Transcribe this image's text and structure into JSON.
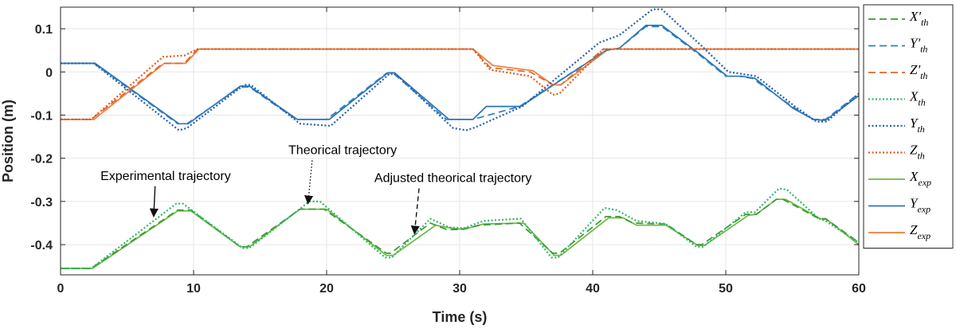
{
  "chart_data": {
    "type": "line",
    "xlabel": "Time (s)",
    "ylabel": "Position (m)",
    "xlim": [
      0,
      60
    ],
    "ylim": [
      -0.47,
      0.15
    ],
    "xticks": [
      0,
      10,
      20,
      30,
      40,
      50,
      60
    ],
    "yticks": [
      0.1,
      0,
      -0.1,
      -0.2,
      -0.3,
      -0.4
    ],
    "xtick_labels": [
      "0",
      "10",
      "20",
      "30",
      "40",
      "50",
      "60"
    ],
    "ytick_labels": [
      "0.1",
      "0",
      "-0.1",
      "-0.2",
      "-0.3",
      "-0.4"
    ],
    "grid": true,
    "legend_position": "right-outside",
    "colors": {
      "X": "#4fb043",
      "Y": "#2f7ec0",
      "Z": "#e8793a"
    },
    "series": [
      {
        "name": "X'th",
        "base": "X",
        "prime": true,
        "sub": "th",
        "style": "dashed",
        "color": "#3a9a30",
        "points": [
          [
            0,
            -0.455
          ],
          [
            2.3,
            -0.455
          ],
          [
            8.8,
            -0.32
          ],
          [
            9.8,
            -0.32
          ],
          [
            13.5,
            -0.405
          ],
          [
            14,
            -0.405
          ],
          [
            18,
            -0.318
          ],
          [
            19.8,
            -0.318
          ],
          [
            24.5,
            -0.42
          ],
          [
            24.8,
            -0.42
          ],
          [
            27.8,
            -0.35
          ],
          [
            29,
            -0.365
          ],
          [
            30,
            -0.365
          ],
          [
            31.5,
            -0.355
          ],
          [
            34.5,
            -0.35
          ],
          [
            37,
            -0.42
          ],
          [
            37.5,
            -0.42
          ],
          [
            41,
            -0.335
          ],
          [
            42,
            -0.335
          ],
          [
            43,
            -0.35
          ],
          [
            45.5,
            -0.352
          ],
          [
            47.8,
            -0.4
          ],
          [
            48.2,
            -0.4
          ],
          [
            51.5,
            -0.33
          ],
          [
            52.3,
            -0.33
          ],
          [
            53.8,
            -0.295
          ],
          [
            54.3,
            -0.295
          ],
          [
            57,
            -0.34
          ],
          [
            57.5,
            -0.34
          ],
          [
            60,
            -0.395
          ]
        ]
      },
      {
        "name": "Y'th",
        "base": "Y",
        "prime": true,
        "sub": "th",
        "style": "dashed",
        "color": "#2f7ec0",
        "points": [
          [
            0,
            0.02
          ],
          [
            2.5,
            0.02
          ],
          [
            8.8,
            -0.12
          ],
          [
            9.5,
            -0.12
          ],
          [
            13.5,
            -0.035
          ],
          [
            14.2,
            -0.035
          ],
          [
            17.7,
            -0.11
          ],
          [
            20,
            -0.11
          ],
          [
            24.5,
            -0.003
          ],
          [
            25,
            -0.003
          ],
          [
            29,
            -0.11
          ],
          [
            31,
            -0.11
          ],
          [
            34.5,
            -0.08
          ],
          [
            41,
            0.05
          ],
          [
            42,
            0.055
          ],
          [
            44,
            0.105
          ],
          [
            45.2,
            0.105
          ],
          [
            48,
            0.04
          ],
          [
            50,
            -0.01
          ],
          [
            51,
            -0.01
          ],
          [
            52,
            -0.015
          ],
          [
            55,
            -0.08
          ],
          [
            56.5,
            -0.11
          ],
          [
            57.5,
            -0.11
          ],
          [
            60,
            -0.05
          ]
        ]
      },
      {
        "name": "Z'th",
        "base": "Z",
        "prime": true,
        "sub": "th",
        "style": "dashed",
        "color": "#d96a2c",
        "points": [
          [
            0,
            -0.11
          ],
          [
            2.3,
            -0.11
          ],
          [
            7.7,
            0.02
          ],
          [
            9.3,
            0.02
          ],
          [
            10.3,
            0.053
          ],
          [
            31,
            0.053
          ],
          [
            32.3,
            0.01
          ],
          [
            35.3,
            0.0
          ],
          [
            37,
            -0.03
          ],
          [
            37.6,
            -0.03
          ],
          [
            40.8,
            0.053
          ],
          [
            60,
            0.053
          ]
        ]
      },
      {
        "name": "Xth",
        "base": "X",
        "prime": false,
        "sub": "th",
        "style": "dotted",
        "color": "#2fb86a",
        "points": [
          [
            0,
            -0.455
          ],
          [
            2.3,
            -0.455
          ],
          [
            8.7,
            -0.305
          ],
          [
            9.2,
            -0.305
          ],
          [
            13.7,
            -0.408
          ],
          [
            14.2,
            -0.408
          ],
          [
            18.7,
            -0.3
          ],
          [
            19.5,
            -0.3
          ],
          [
            24.4,
            -0.43
          ],
          [
            24.9,
            -0.43
          ],
          [
            27.8,
            -0.34
          ],
          [
            29.2,
            -0.36
          ],
          [
            30.3,
            -0.362
          ],
          [
            31.8,
            -0.345
          ],
          [
            34.6,
            -0.34
          ],
          [
            36.9,
            -0.43
          ],
          [
            37.4,
            -0.43
          ],
          [
            40.9,
            -0.315
          ],
          [
            41.8,
            -0.32
          ],
          [
            43.3,
            -0.345
          ],
          [
            45.5,
            -0.352
          ],
          [
            47.8,
            -0.405
          ],
          [
            48.3,
            -0.405
          ],
          [
            51.5,
            -0.325
          ],
          [
            52.2,
            -0.325
          ],
          [
            54,
            -0.27
          ],
          [
            54.6,
            -0.273
          ],
          [
            57,
            -0.34
          ],
          [
            57.5,
            -0.345
          ],
          [
            60,
            -0.395
          ]
        ]
      },
      {
        "name": "Yth",
        "base": "Y",
        "prime": false,
        "sub": "th",
        "style": "dotted",
        "color": "#2560b0",
        "points": [
          [
            0,
            0.02
          ],
          [
            2.5,
            0.02
          ],
          [
            8.9,
            -0.135
          ],
          [
            9.5,
            -0.13
          ],
          [
            13.8,
            -0.03
          ],
          [
            14.3,
            -0.03
          ],
          [
            18,
            -0.12
          ],
          [
            20.3,
            -0.125
          ],
          [
            24.7,
            -0.005
          ],
          [
            25.2,
            -0.005
          ],
          [
            29.5,
            -0.13
          ],
          [
            30.5,
            -0.135
          ],
          [
            31.2,
            -0.128
          ],
          [
            34.7,
            -0.08
          ],
          [
            40.5,
            0.068
          ],
          [
            42,
            0.085
          ],
          [
            44.5,
            0.145
          ],
          [
            45.2,
            0.145
          ],
          [
            48.2,
            0.06
          ],
          [
            50.2,
            0.0
          ],
          [
            51.3,
            -0.005
          ],
          [
            52.3,
            -0.01
          ],
          [
            55.2,
            -0.08
          ],
          [
            56.8,
            -0.115
          ],
          [
            57.6,
            -0.115
          ],
          [
            60,
            -0.05
          ]
        ]
      },
      {
        "name": "Zth",
        "base": "Z",
        "prime": false,
        "sub": "th",
        "style": "dotted",
        "color": "#e35a1e",
        "points": [
          [
            0,
            -0.11
          ],
          [
            2.3,
            -0.11
          ],
          [
            7.7,
            0.035
          ],
          [
            9.3,
            0.038
          ],
          [
            10.3,
            0.053
          ],
          [
            31,
            0.053
          ],
          [
            32.3,
            0.005
          ],
          [
            35.3,
            -0.01
          ],
          [
            37,
            -0.053
          ],
          [
            37.5,
            -0.05
          ],
          [
            40.8,
            0.053
          ],
          [
            60,
            0.053
          ]
        ]
      },
      {
        "name": "Xexp",
        "base": "X",
        "prime": false,
        "sub": "exp",
        "style": "solid",
        "color": "#6cb842",
        "points": [
          [
            0,
            -0.455
          ],
          [
            2.4,
            -0.455
          ],
          [
            8.8,
            -0.322
          ],
          [
            9.8,
            -0.322
          ],
          [
            13.5,
            -0.405
          ],
          [
            14.2,
            -0.405
          ],
          [
            18,
            -0.318
          ],
          [
            20,
            -0.318
          ],
          [
            24.5,
            -0.425
          ],
          [
            25,
            -0.425
          ],
          [
            28.2,
            -0.355
          ],
          [
            29,
            -0.36
          ],
          [
            30.3,
            -0.365
          ],
          [
            31.8,
            -0.352
          ],
          [
            34.8,
            -0.35
          ],
          [
            37.1,
            -0.425
          ],
          [
            37.6,
            -0.425
          ],
          [
            41.2,
            -0.338
          ],
          [
            42.3,
            -0.338
          ],
          [
            43.3,
            -0.355
          ],
          [
            45.5,
            -0.355
          ],
          [
            47.9,
            -0.402
          ],
          [
            48.4,
            -0.402
          ],
          [
            51.7,
            -0.332
          ],
          [
            52.3,
            -0.33
          ],
          [
            53.8,
            -0.295
          ],
          [
            54.5,
            -0.295
          ],
          [
            57.1,
            -0.34
          ],
          [
            57.6,
            -0.342
          ],
          [
            60,
            -0.4
          ]
        ]
      },
      {
        "name": "Yexp",
        "base": "Y",
        "prime": false,
        "sub": "exp",
        "style": "solid",
        "color": "#2a74b8",
        "points": [
          [
            0,
            0.02
          ],
          [
            2.6,
            0.02
          ],
          [
            8.9,
            -0.12
          ],
          [
            9.6,
            -0.12
          ],
          [
            13.5,
            -0.033
          ],
          [
            14.2,
            -0.033
          ],
          [
            17.8,
            -0.11
          ],
          [
            20.2,
            -0.11
          ],
          [
            24.6,
            -0.002
          ],
          [
            25.1,
            -0.002
          ],
          [
            29.2,
            -0.11
          ],
          [
            31,
            -0.11
          ],
          [
            32,
            -0.08
          ],
          [
            34.6,
            -0.08
          ],
          [
            41,
            0.05
          ],
          [
            42,
            0.055
          ],
          [
            44,
            0.108
          ],
          [
            45.2,
            0.108
          ],
          [
            48.1,
            0.04
          ],
          [
            50.1,
            -0.01
          ],
          [
            51.2,
            -0.01
          ],
          [
            52.2,
            -0.015
          ],
          [
            55.1,
            -0.085
          ],
          [
            56.6,
            -0.11
          ],
          [
            57.5,
            -0.112
          ],
          [
            60,
            -0.055
          ]
        ]
      },
      {
        "name": "Zexp",
        "base": "Z",
        "prime": false,
        "sub": "exp",
        "style": "solid",
        "color": "#f07c3c",
        "points": [
          [
            0,
            -0.11
          ],
          [
            2.5,
            -0.11
          ],
          [
            7.8,
            0.02
          ],
          [
            9.4,
            0.02
          ],
          [
            10.4,
            0.053
          ],
          [
            31,
            0.053
          ],
          [
            32.5,
            0.015
          ],
          [
            35.5,
            0.003
          ],
          [
            37,
            -0.03
          ],
          [
            37.6,
            -0.03
          ],
          [
            41.2,
            0.053
          ],
          [
            60,
            0.053
          ]
        ]
      }
    ],
    "annotations": [
      {
        "text": "Theorical trajectory",
        "x_text": 21.2,
        "y_text": -0.19,
        "x_arrow": 18.6,
        "y_arrow": -0.305,
        "style": "dotted"
      },
      {
        "text": "Experimental trajectory",
        "x_text": 7.9,
        "y_text": -0.25,
        "x_arrow": 7.0,
        "y_arrow": -0.335,
        "style": "solid"
      },
      {
        "text": "Adjusted theorical trajectory",
        "x_text": 29.5,
        "y_text": -0.255,
        "x_arrow": 26.6,
        "y_arrow": -0.375,
        "style": "dashed"
      }
    ]
  }
}
